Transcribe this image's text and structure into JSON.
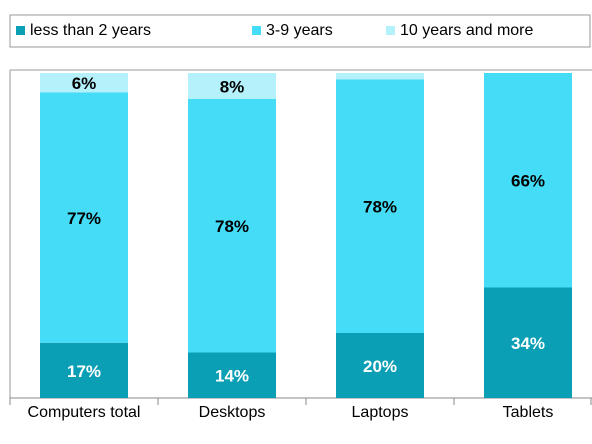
{
  "chart_data": {
    "type": "stacked_bar",
    "categories": [
      "Computers total",
      "Desktops",
      "Laptops",
      "Tablets"
    ],
    "series": [
      {
        "name": "less than 2 years",
        "color": "#0a9fb4",
        "values": [
          17,
          14,
          20,
          34
        ],
        "value_labels": [
          "17%",
          "14%",
          "20%",
          "34%"
        ]
      },
      {
        "name": "3-9 years",
        "color": "#45dcf7",
        "values": [
          77,
          78,
          78,
          66
        ],
        "value_labels": [
          "77%",
          "78%",
          "78%",
          "66%"
        ]
      },
      {
        "name": "10 years and more",
        "color": "#b4f1fb",
        "values": [
          6,
          8,
          2,
          0
        ],
        "value_labels": [
          "6%",
          "8%",
          null,
          null
        ]
      }
    ],
    "ylim": [
      0,
      100
    ]
  }
}
